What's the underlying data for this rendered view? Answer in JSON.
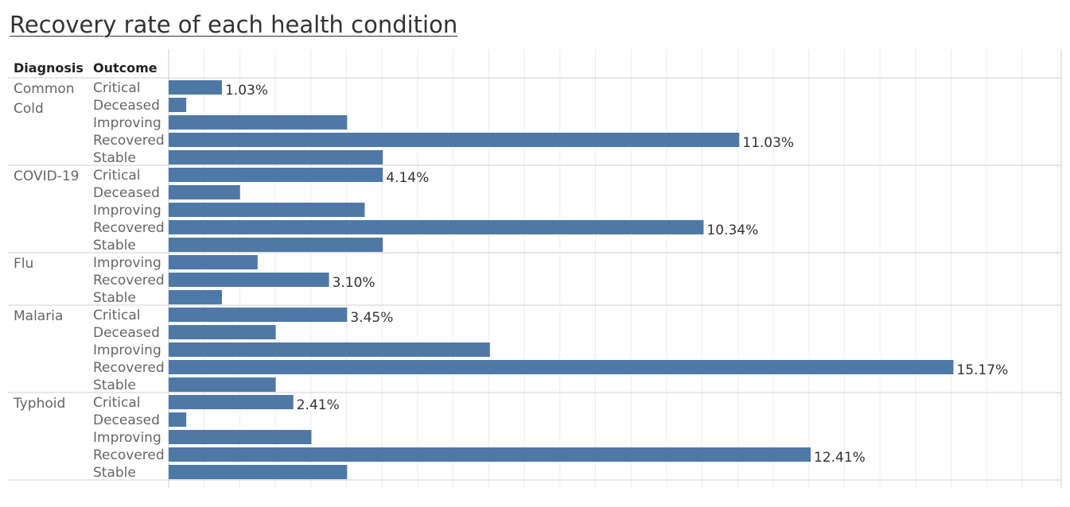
{
  "title": "Recovery rate of each health condition",
  "headers": {
    "diagnosis": "Diagnosis",
    "outcome": "Outcome"
  },
  "chart_data": {
    "type": "bar",
    "orientation": "horizontal",
    "title": "Recovery rate of each health condition",
    "xlabel": "",
    "ylabel": "",
    "value_unit": "%",
    "xlim": [
      0,
      16.5
    ],
    "grid": true,
    "bar_color": "#4e79a7",
    "groups": [
      {
        "diagnosis": [
          "Common",
          "Cold"
        ],
        "rows": [
          {
            "outcome": "Critical",
            "value": 1.03,
            "label": "1.03%"
          },
          {
            "outcome": "Deceased",
            "value": 0.34
          },
          {
            "outcome": "Improving",
            "value": 3.45
          },
          {
            "outcome": "Recovered",
            "value": 11.03,
            "label": "11.03%"
          },
          {
            "outcome": "Stable",
            "value": 4.14
          }
        ]
      },
      {
        "diagnosis": [
          "COVID-19"
        ],
        "rows": [
          {
            "outcome": "Critical",
            "value": 4.14,
            "label": "4.14%"
          },
          {
            "outcome": "Deceased",
            "value": 1.38
          },
          {
            "outcome": "Improving",
            "value": 3.79
          },
          {
            "outcome": "Recovered",
            "value": 10.34,
            "label": "10.34%"
          },
          {
            "outcome": "Stable",
            "value": 4.14
          }
        ]
      },
      {
        "diagnosis": [
          "Flu"
        ],
        "rows": [
          {
            "outcome": "Improving",
            "value": 1.72
          },
          {
            "outcome": "Recovered",
            "value": 3.1,
            "label": "3.10%"
          },
          {
            "outcome": "Stable",
            "value": 1.03
          }
        ]
      },
      {
        "diagnosis": [
          "Malaria"
        ],
        "rows": [
          {
            "outcome": "Critical",
            "value": 3.45,
            "label": "3.45%"
          },
          {
            "outcome": "Deceased",
            "value": 2.07
          },
          {
            "outcome": "Improving",
            "value": 6.21
          },
          {
            "outcome": "Recovered",
            "value": 15.17,
            "label": "15.17%"
          },
          {
            "outcome": "Stable",
            "value": 2.07
          }
        ]
      },
      {
        "diagnosis": [
          "Typhoid"
        ],
        "rows": [
          {
            "outcome": "Critical",
            "value": 2.41,
            "label": "2.41%"
          },
          {
            "outcome": "Deceased",
            "value": 0.34
          },
          {
            "outcome": "Improving",
            "value": 2.76
          },
          {
            "outcome": "Recovered",
            "value": 12.41,
            "label": "12.41%"
          },
          {
            "outcome": "Stable",
            "value": 3.45
          }
        ]
      }
    ]
  }
}
